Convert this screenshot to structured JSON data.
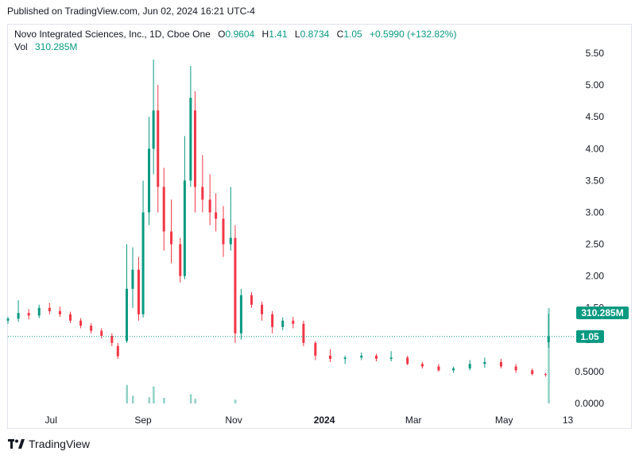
{
  "header": {
    "published": "Published on TradingView.com, Jun 02, 2024 16:21 UTC-4"
  },
  "legend": {
    "symbol": "Novo Integrated Sciences, Inc., 1D, Cboe One",
    "o_label": "O",
    "o_value": "0.9604",
    "h_label": "H",
    "h_value": "1.41",
    "l_label": "L",
    "l_value": "0.8734",
    "c_label": "C",
    "c_value": "1.05",
    "change": "+0.5990 (+132.82%)",
    "vol_label": "Vol",
    "vol_value": "310.285M"
  },
  "colors": {
    "up": "#089981",
    "down": "#f23645",
    "last_price": "#089981",
    "grid": "#e0e3eb",
    "text": "#131722"
  },
  "chart_data": {
    "type": "candlestick",
    "y_ticks": [
      "5.50",
      "5.00",
      "4.50",
      "4.00",
      "3.50",
      "3.00",
      "2.50",
      "2.00",
      "1.50",
      "1.00",
      "0.5000",
      "0.0000"
    ],
    "y_tick_values": [
      5.5,
      5.0,
      4.5,
      4.0,
      3.5,
      3.0,
      2.5,
      2.0,
      1.5,
      1.0,
      0.5,
      0.0
    ],
    "ylim": [
      0,
      5.75
    ],
    "x_labels": [
      "Jul",
      "Sep",
      "Nov",
      "2024",
      "Mar",
      "May",
      "13"
    ],
    "x_range": [
      "2023-06-02",
      "2024-06-17"
    ],
    "last_price": 1.05,
    "last_price_label": "1.05",
    "last_volume_label": "310.285M",
    "series": [
      [
        "2023-06-02",
        1.3,
        1.36,
        1.25,
        1.33
      ],
      [
        "2023-06-09",
        1.33,
        1.62,
        1.28,
        1.42
      ],
      [
        "2023-06-16",
        1.42,
        1.48,
        1.32,
        1.38
      ],
      [
        "2023-06-23",
        1.38,
        1.55,
        1.34,
        1.5
      ],
      [
        "2023-06-30",
        1.5,
        1.58,
        1.4,
        1.45
      ],
      [
        "2023-07-07",
        1.45,
        1.52,
        1.36,
        1.4
      ],
      [
        "2023-07-14",
        1.4,
        1.44,
        1.26,
        1.3
      ],
      [
        "2023-07-21",
        1.3,
        1.34,
        1.18,
        1.22
      ],
      [
        "2023-07-28",
        1.22,
        1.26,
        1.1,
        1.14
      ],
      [
        "2023-08-04",
        1.14,
        1.18,
        1.02,
        1.06
      ],
      [
        "2023-08-11",
        1.06,
        1.1,
        0.9,
        0.95
      ],
      [
        "2023-08-15",
        0.9,
        0.95,
        0.7,
        0.74
      ],
      [
        "2023-08-21",
        0.98,
        2.5,
        0.95,
        1.8
      ],
      [
        "2023-08-25",
        1.8,
        2.45,
        1.5,
        2.1
      ],
      [
        "2023-08-29",
        2.1,
        2.3,
        1.3,
        1.4
      ],
      [
        "2023-09-01",
        1.4,
        3.5,
        1.35,
        3.0
      ],
      [
        "2023-09-05",
        3.0,
        4.5,
        2.8,
        4.0
      ],
      [
        "2023-09-08",
        4.0,
        5.4,
        3.6,
        4.6
      ],
      [
        "2023-09-11",
        4.6,
        5.0,
        3.0,
        3.4
      ],
      [
        "2023-09-15",
        3.4,
        3.7,
        2.4,
        2.7
      ],
      [
        "2023-09-20",
        2.7,
        3.2,
        2.2,
        2.5
      ],
      [
        "2023-09-26",
        2.5,
        2.6,
        1.9,
        2.0
      ],
      [
        "2023-09-29",
        2.0,
        4.2,
        1.95,
        3.5
      ],
      [
        "2023-10-03",
        3.5,
        5.3,
        3.4,
        4.8
      ],
      [
        "2023-10-06",
        4.6,
        4.9,
        3.0,
        3.4
      ],
      [
        "2023-10-11",
        3.4,
        3.9,
        3.0,
        3.2
      ],
      [
        "2023-10-16",
        3.2,
        3.6,
        2.8,
        3.0
      ],
      [
        "2023-10-20",
        3.0,
        3.3,
        2.7,
        2.9
      ],
      [
        "2023-10-25",
        2.9,
        3.1,
        2.3,
        2.5
      ],
      [
        "2023-10-30",
        2.5,
        3.4,
        2.4,
        2.6
      ],
      [
        "2023-11-02",
        2.6,
        2.8,
        0.95,
        1.1
      ],
      [
        "2023-11-06",
        1.1,
        1.8,
        1.0,
        1.7
      ],
      [
        "2023-11-13",
        1.7,
        1.75,
        1.5,
        1.55
      ],
      [
        "2023-11-20",
        1.55,
        1.6,
        1.3,
        1.4
      ],
      [
        "2023-11-27",
        1.4,
        1.45,
        1.1,
        1.2
      ],
      [
        "2023-12-04",
        1.2,
        1.35,
        1.15,
        1.3
      ],
      [
        "2023-12-11",
        1.3,
        1.36,
        1.18,
        1.25
      ],
      [
        "2023-12-18",
        1.25,
        1.3,
        0.9,
        0.95
      ],
      [
        "2023-12-26",
        0.95,
        0.98,
        0.68,
        0.75
      ],
      [
        "2024-01-05",
        0.75,
        0.85,
        0.65,
        0.7
      ],
      [
        "2024-01-15",
        0.7,
        0.75,
        0.62,
        0.72
      ],
      [
        "2024-01-26",
        0.72,
        0.8,
        0.68,
        0.75
      ],
      [
        "2024-02-05",
        0.75,
        0.78,
        0.66,
        0.7
      ],
      [
        "2024-02-15",
        0.7,
        0.82,
        0.66,
        0.72
      ],
      [
        "2024-02-26",
        0.72,
        0.75,
        0.6,
        0.62
      ],
      [
        "2024-03-07",
        0.62,
        0.65,
        0.55,
        0.58
      ],
      [
        "2024-03-18",
        0.58,
        0.62,
        0.5,
        0.52
      ],
      [
        "2024-03-28",
        0.52,
        0.58,
        0.48,
        0.55
      ],
      [
        "2024-04-08",
        0.55,
        0.68,
        0.52,
        0.62
      ],
      [
        "2024-04-18",
        0.62,
        0.72,
        0.56,
        0.65
      ],
      [
        "2024-04-29",
        0.65,
        0.7,
        0.55,
        0.58
      ],
      [
        "2024-05-09",
        0.58,
        0.62,
        0.48,
        0.52
      ],
      [
        "2024-05-20",
        0.52,
        0.55,
        0.44,
        0.46
      ],
      [
        "2024-05-29",
        0.46,
        0.48,
        0.42,
        0.45
      ],
      [
        "2024-05-31",
        0.9604,
        1.41,
        0.8734,
        1.05
      ]
    ],
    "volume": [
      [
        "2023-08-21",
        60
      ],
      [
        "2023-08-25",
        25
      ],
      [
        "2023-09-05",
        20
      ],
      [
        "2023-09-08",
        55
      ],
      [
        "2023-09-15",
        18
      ],
      [
        "2023-10-03",
        30
      ],
      [
        "2023-10-06",
        15
      ],
      [
        "2023-11-02",
        12
      ],
      [
        "2024-05-31",
        310.285
      ]
    ],
    "volume_max": 310.285
  },
  "footer": {
    "brand": "TradingView"
  }
}
